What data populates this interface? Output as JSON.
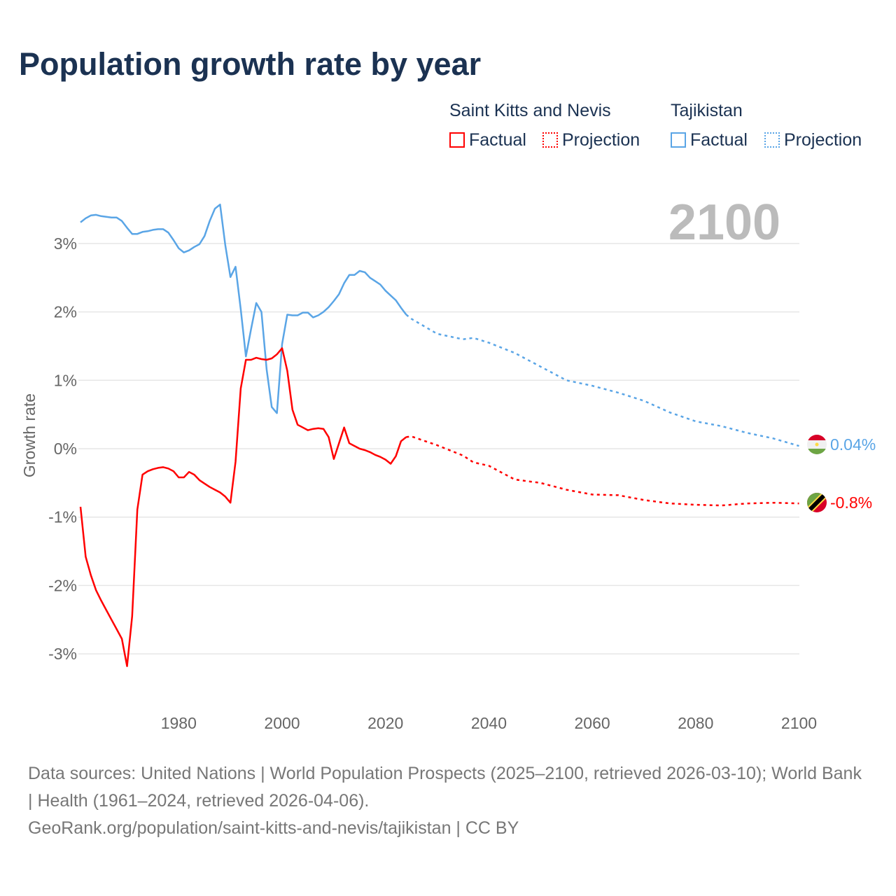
{
  "title": "Population growth rate by year",
  "legend": {
    "groups": [
      {
        "country": "Saint Kitts and Nevis",
        "factual": "Factual",
        "projection": "Projection",
        "color": "#ff0000"
      },
      {
        "country": "Tajikistan",
        "factual": "Factual",
        "projection": "Projection",
        "color": "#5aa5e6"
      }
    ]
  },
  "year_overlay": "2100",
  "footer": {
    "sources": "Data sources: United Nations | World Population Prospects (2025–2100, retrieved 2026-03-10); World Bank | Health (1961–2024, retrieved 2026-04-06).",
    "link": "GeoRank.org/population/saint-kitts-and-nevis/tajikistan | CC BY"
  },
  "chart_data": {
    "type": "line",
    "title": "Population growth rate by year",
    "xlabel": "",
    "ylabel": "Growth rate",
    "xlim": [
      1961,
      2100
    ],
    "ylim": [
      -3.5,
      3.8
    ],
    "grid": true,
    "x_ticks": [
      1980,
      2000,
      2020,
      2040,
      2060,
      2080,
      2100
    ],
    "y_ticks": [
      3,
      2,
      1,
      0,
      -1,
      -2,
      -3
    ],
    "y_tick_labels": [
      "3%",
      "2%",
      "1%",
      "0%",
      "-1%",
      "-2%",
      "-3%"
    ],
    "legend_position": "top-right",
    "series": [
      {
        "name": "Tajikistan",
        "color": "#5aa5e6",
        "end_label": "0.04%",
        "factual": {
          "x": [
            1961,
            1962,
            1963,
            1964,
            1965,
            1966,
            1967,
            1968,
            1969,
            1970,
            1971,
            1972,
            1973,
            1974,
            1975,
            1976,
            1977,
            1978,
            1979,
            1980,
            1981,
            1982,
            1983,
            1984,
            1985,
            1986,
            1987,
            1988,
            1989,
            1990,
            1991,
            1992,
            1993,
            1994,
            1995,
            1996,
            1997,
            1998,
            1999,
            2000,
            2001,
            2002,
            2003,
            2004,
            2005,
            2006,
            2007,
            2008,
            2009,
            2010,
            2011,
            2012,
            2013,
            2014,
            2015,
            2016,
            2017,
            2018,
            2019,
            2020,
            2021,
            2022,
            2023,
            2024
          ],
          "y": [
            3.31,
            3.37,
            3.41,
            3.42,
            3.4,
            3.39,
            3.38,
            3.38,
            3.33,
            3.23,
            3.14,
            3.14,
            3.17,
            3.18,
            3.2,
            3.21,
            3.21,
            3.16,
            3.05,
            2.93,
            2.87,
            2.9,
            2.95,
            2.99,
            3.11,
            3.33,
            3.51,
            3.57,
            2.98,
            2.51,
            2.66,
            2.04,
            1.35,
            1.75,
            2.13,
            2.0,
            1.16,
            0.61,
            0.52,
            1.53,
            1.96,
            1.95,
            1.95,
            1.99,
            1.99,
            1.92,
            1.95,
            2.0,
            2.07,
            2.16,
            2.26,
            2.42,
            2.54,
            2.54,
            2.6,
            2.58,
            2.5,
            2.45,
            2.4,
            2.31,
            2.24,
            2.17,
            2.06,
            1.96
          ]
        },
        "projection": {
          "x": [
            2024,
            2025,
            2030,
            2035,
            2037,
            2040,
            2045,
            2050,
            2055,
            2060,
            2065,
            2070,
            2075,
            2080,
            2085,
            2090,
            2095,
            2100
          ],
          "y": [
            1.96,
            1.9,
            1.68,
            1.6,
            1.62,
            1.55,
            1.4,
            1.2,
            1.0,
            0.92,
            0.82,
            0.7,
            0.53,
            0.4,
            0.33,
            0.23,
            0.15,
            0.04
          ]
        }
      },
      {
        "name": "Saint Kitts and Nevis",
        "color": "#ff0000",
        "end_label": "-0.8%",
        "factual": {
          "x": [
            1961,
            1962,
            1963,
            1964,
            1965,
            1966,
            1967,
            1968,
            1969,
            1970,
            1971,
            1972,
            1973,
            1974,
            1975,
            1976,
            1977,
            1978,
            1979,
            1980,
            1981,
            1982,
            1983,
            1984,
            1985,
            1986,
            1987,
            1988,
            1989,
            1990,
            1991,
            1992,
            1993,
            1994,
            1995,
            1996,
            1997,
            1998,
            1999,
            2000,
            2001,
            2002,
            2003,
            2004,
            2005,
            2006,
            2007,
            2008,
            2009,
            2010,
            2011,
            2012,
            2013,
            2014,
            2015,
            2016,
            2017,
            2018,
            2019,
            2020,
            2021,
            2022,
            2023,
            2024
          ],
          "y": [
            -0.85,
            -1.58,
            -1.85,
            -2.07,
            -2.22,
            -2.36,
            -2.5,
            -2.64,
            -2.78,
            -3.18,
            -2.45,
            -0.89,
            -0.38,
            -0.33,
            -0.3,
            -0.28,
            -0.27,
            -0.29,
            -0.33,
            -0.42,
            -0.42,
            -0.34,
            -0.38,
            -0.46,
            -0.51,
            -0.56,
            -0.6,
            -0.64,
            -0.7,
            -0.79,
            -0.19,
            0.88,
            1.3,
            1.3,
            1.33,
            1.31,
            1.3,
            1.32,
            1.38,
            1.47,
            1.14,
            0.57,
            0.35,
            0.31,
            0.27,
            0.29,
            0.3,
            0.29,
            0.17,
            -0.15,
            0.08,
            0.31,
            0.08,
            0.04,
            0.0,
            -0.02,
            -0.05,
            -0.09,
            -0.12,
            -0.16,
            -0.22,
            -0.11,
            0.11,
            0.17
          ]
        },
        "projection": {
          "x": [
            2024,
            2025,
            2030,
            2035,
            2037,
            2040,
            2045,
            2050,
            2055,
            2060,
            2065,
            2070,
            2075,
            2080,
            2085,
            2090,
            2095,
            2100
          ],
          "y": [
            0.17,
            0.18,
            0.05,
            -0.1,
            -0.2,
            -0.25,
            -0.45,
            -0.5,
            -0.6,
            -0.67,
            -0.68,
            -0.75,
            -0.8,
            -0.82,
            -0.83,
            -0.8,
            -0.79,
            -0.8
          ]
        }
      }
    ]
  }
}
